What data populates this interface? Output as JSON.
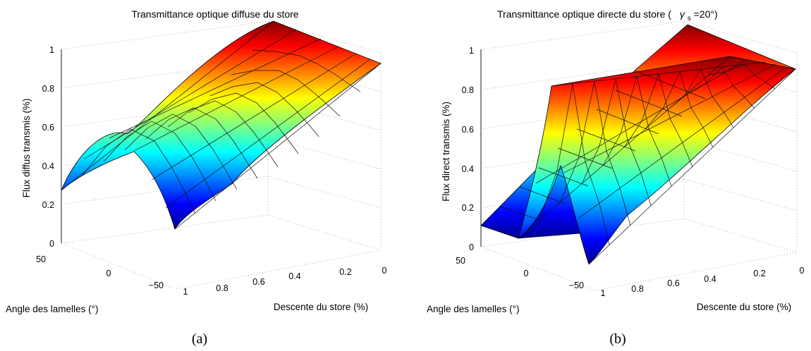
{
  "chart_data": [
    {
      "type": "surface",
      "title": "Transmittance optique diffuse du store",
      "zlabel": "Flux diffus transmis (%)",
      "xlabel": "Descente du store (%)",
      "ylabel": "Angle des lamelles (°)",
      "caption": "(a)",
      "x_ticks": [
        "0",
        "0.2",
        "0.4",
        "0.6",
        "0.8",
        "1"
      ],
      "y_ticks": [
        "50",
        "0",
        "−50"
      ],
      "z_ticks": [
        "0",
        "0.2",
        "0.4",
        "0.6",
        "0.8",
        "1"
      ],
      "xlim": [
        0,
        1
      ],
      "ylim": [
        -80,
        80
      ],
      "zlim": [
        0,
        1
      ],
      "grid": true,
      "colormap": "jet",
      "description_values": {
        "at_descente_1_angle_max": 0.28,
        "at_descente_1_angle_0": 0.55,
        "at_descente_1_angle_min": 0.08,
        "at_descente_0": 1.0
      }
    },
    {
      "type": "surface",
      "title_main": "Transmittance optique directe du store (",
      "title_gamma": "γ",
      "title_sub": "s",
      "title_tail": "=20°)",
      "zlabel": "Flux direct transmis (%)",
      "xlabel": "Descente du store (%)",
      "ylabel": "Angle des lamelles (°)",
      "caption": "(b)",
      "x_ticks": [
        "0",
        "0.2",
        "0.4",
        "0.6",
        "0.8",
        "1"
      ],
      "y_ticks": [
        "50",
        "0",
        "−50"
      ],
      "z_ticks": [
        "0",
        "0.2",
        "0.4",
        "0.6",
        "0.8",
        "1"
      ],
      "xlim": [
        0,
        1
      ],
      "ylim": [
        -80,
        80
      ],
      "zlim": [
        0,
        1
      ],
      "grid": true,
      "colormap": "jet",
      "description_values": {
        "at_descente_1_angle_max": 0.09,
        "at_descente_1_angle_20": 0.82,
        "at_descente_1_angle_min": 0.0,
        "at_descente_0": 1.0
      }
    }
  ]
}
